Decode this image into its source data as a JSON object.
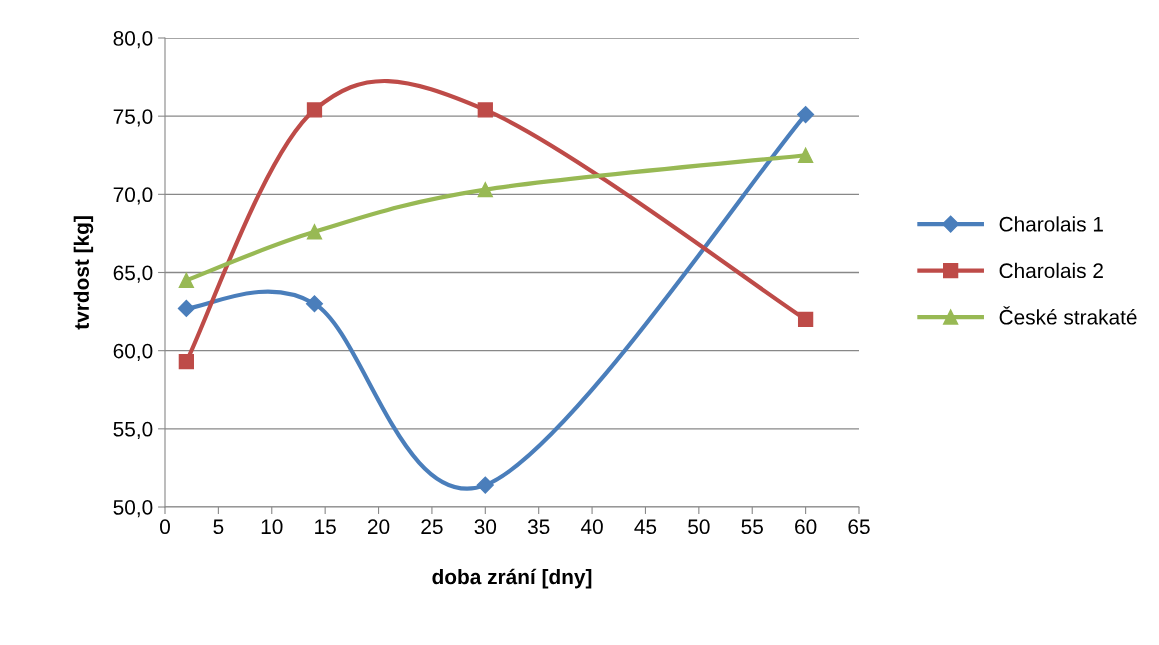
{
  "chart_data": {
    "type": "line",
    "xlabel": "doba zrání [dny]",
    "ylabel": "tvrdost [kg]",
    "x": [
      2,
      14,
      30,
      60
    ],
    "series": [
      {
        "name": "Charolais 1",
        "color": "#4a7ebb",
        "marker": "diamond",
        "values": [
          62.7,
          63.0,
          51.4,
          75.1
        ]
      },
      {
        "name": "Charolais 2",
        "color": "#be4b48",
        "marker": "square",
        "values": [
          59.3,
          75.4,
          75.4,
          62.0
        ]
      },
      {
        "name": "České strakaté",
        "color": "#98b954",
        "marker": "triangle",
        "values": [
          64.5,
          67.6,
          70.3,
          72.5
        ]
      }
    ],
    "xlim": [
      0,
      65
    ],
    "xticks": [
      0,
      5,
      10,
      15,
      20,
      25,
      30,
      35,
      40,
      45,
      50,
      55,
      60,
      65
    ],
    "ylim": [
      50,
      80
    ],
    "yticks": [
      {
        "value": 50,
        "label": "50,0"
      },
      {
        "value": 55,
        "label": "55,0"
      },
      {
        "value": 60,
        "label": "60,0"
      },
      {
        "value": 65,
        "label": "65,0"
      },
      {
        "value": 70,
        "label": "70,0"
      },
      {
        "value": 75,
        "label": "75,0"
      },
      {
        "value": 80,
        "label": "80,0"
      }
    ],
    "grid": "y",
    "legend": "right",
    "line_style": "solid"
  }
}
